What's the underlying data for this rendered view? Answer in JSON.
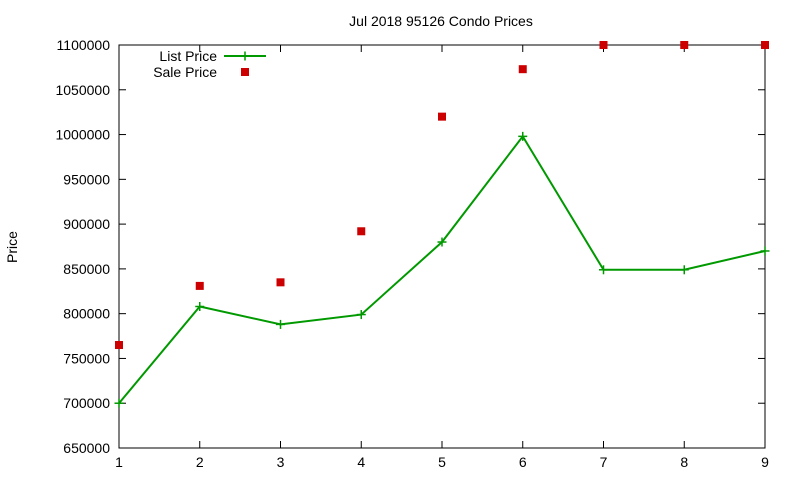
{
  "chart_data": {
    "type": "line",
    "title": "Jul 2018 95126 Condo Prices",
    "xlabel": "",
    "ylabel": "Price",
    "xlim": [
      1,
      9
    ],
    "ylim": [
      650000,
      1100000
    ],
    "x_ticks": [
      1,
      2,
      3,
      4,
      5,
      6,
      7,
      8,
      9
    ],
    "y_ticks": [
      650000,
      700000,
      750000,
      800000,
      850000,
      900000,
      950000,
      1000000,
      1050000,
      1100000
    ],
    "grid": false,
    "legend_position": "top-left",
    "series": [
      {
        "name": "List Price",
        "style": "line+plus",
        "color": "#009900",
        "x": [
          1,
          2,
          3,
          4,
          5,
          6,
          7,
          8,
          9
        ],
        "y": [
          700000,
          808000,
          788000,
          799000,
          880000,
          998000,
          849000,
          849000,
          870000
        ]
      },
      {
        "name": "Sale Price",
        "style": "square",
        "color": "#cc0000",
        "x": [
          1,
          2,
          3,
          4,
          5,
          6,
          7,
          8,
          9
        ],
        "y": [
          765000,
          831000,
          835000,
          892000,
          1020000,
          1073000,
          1100000,
          1100000,
          1100000
        ]
      }
    ]
  }
}
